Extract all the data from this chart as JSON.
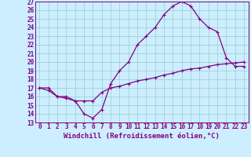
{
  "xlabel": "Windchill (Refroidissement éolien,°C)",
  "background_color": "#cceeff",
  "line_color": "#800080",
  "grid_color": "#99cccc",
  "xlim": [
    -0.5,
    23.5
  ],
  "ylim": [
    13,
    27
  ],
  "xticks": [
    0,
    1,
    2,
    3,
    4,
    5,
    6,
    7,
    8,
    9,
    10,
    11,
    12,
    13,
    14,
    15,
    16,
    17,
    18,
    19,
    20,
    21,
    22,
    23
  ],
  "yticks": [
    13,
    14,
    15,
    16,
    17,
    18,
    19,
    20,
    21,
    22,
    23,
    24,
    25,
    26,
    27
  ],
  "curve1_x": [
    0,
    1,
    2,
    3,
    4,
    5,
    6,
    7,
    8,
    9,
    10,
    11,
    12,
    13,
    14,
    15,
    16,
    17,
    18,
    19,
    20,
    21,
    22,
    23
  ],
  "curve1_y": [
    17.0,
    17.0,
    16.0,
    16.0,
    15.5,
    14.0,
    13.5,
    14.5,
    17.5,
    19.0,
    20.0,
    22.0,
    23.0,
    24.0,
    25.5,
    26.5,
    27.0,
    26.5,
    25.0,
    24.0,
    23.5,
    20.5,
    19.5,
    19.5
  ],
  "curve2_x": [
    0,
    1,
    2,
    3,
    4,
    5,
    6,
    7,
    8,
    9,
    10,
    11,
    12,
    13,
    14,
    15,
    16,
    17,
    18,
    19,
    20,
    21,
    22,
    23
  ],
  "curve2_y": [
    17.0,
    16.7,
    16.0,
    15.8,
    15.5,
    15.5,
    15.5,
    16.5,
    17.0,
    17.2,
    17.5,
    17.8,
    18.0,
    18.2,
    18.5,
    18.7,
    19.0,
    19.2,
    19.3,
    19.5,
    19.7,
    19.8,
    19.9,
    20.0
  ],
  "tick_fontsize": 5.5,
  "label_fontsize": 6.5
}
